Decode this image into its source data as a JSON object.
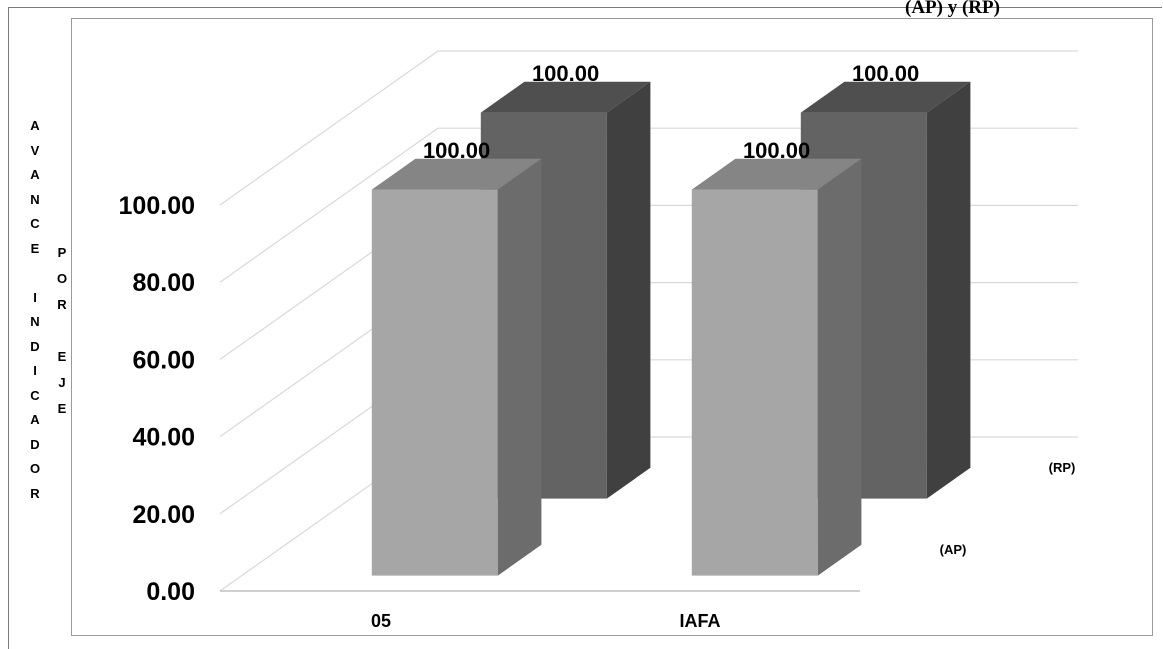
{
  "header": {
    "top_right_text": "(AP) y (RP)"
  },
  "axis": {
    "ylabel_line1": "AVANCE INDICADOR",
    "ylabel_line2": "POR EJE"
  },
  "chart_data": {
    "type": "bar",
    "categories": [
      "05",
      "IAFA"
    ],
    "series": [
      {
        "name": "(AP)",
        "values": [
          100.0,
          100.0
        ],
        "color": "#a6a6a6"
      },
      {
        "name": "(RP)",
        "values": [
          100.0,
          100.0
        ],
        "color": "#636363"
      }
    ],
    "yticks": [
      "0.00",
      "20.00",
      "40.00",
      "60.00",
      "80.00",
      "100.00"
    ],
    "ylim": [
      0,
      100
    ],
    "ylabel": "AVANCE INDICADOR POR EJE",
    "xlabel": "",
    "grid": true,
    "three_d": true,
    "data_labels": [
      "100.00",
      "100.00",
      "100.00",
      "100.00"
    ]
  }
}
